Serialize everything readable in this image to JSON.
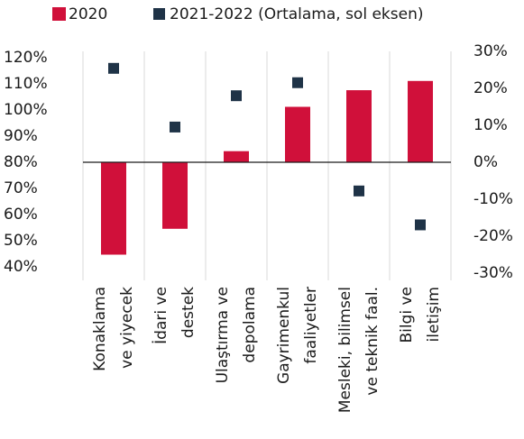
{
  "chart_data": {
    "type": "bar",
    "categories": [
      [
        "Konaklama",
        "ve yiyecek"
      ],
      [
        "İdari ve",
        "destek"
      ],
      [
        "Ulaştırma ve",
        "depolama"
      ],
      [
        "Gayrimenkul",
        "faaliyetler"
      ],
      [
        "Mesleki, bilimsel",
        "ve teknik faal."
      ],
      [
        "Bilgi ve",
        "iletişim"
      ]
    ],
    "series": [
      {
        "name": "2020",
        "color": "#d0103a",
        "type": "bar",
        "axis": "y2",
        "values": [
          -25,
          -18,
          3,
          15,
          19.5,
          22
        ]
      },
      {
        "name": "2021-2022 (Ortalama, sol eksen)",
        "color": "#1f3347",
        "type": "scatter",
        "values": [
          116,
          93.5,
          105.5,
          110.5,
          69,
          56
        ]
      }
    ],
    "ylim": [
      37.5,
      122.5
    ],
    "yticks": [
      {
        "value": 40,
        "label": "40%"
      },
      {
        "value": 50,
        "label": "50%"
      },
      {
        "value": 60,
        "label": "60%"
      },
      {
        "value": 70,
        "label": "70%"
      },
      {
        "value": 80,
        "label": "80%"
      },
      {
        "value": 90,
        "label": "90%"
      },
      {
        "value": 100,
        "label": "100%"
      },
      {
        "value": 110,
        "label": "110%"
      },
      {
        "value": 120,
        "label": "120%"
      }
    ],
    "y2lim": [
      -30,
      30
    ],
    "y2ticks": [
      {
        "value": -30,
        "label": "-30%"
      },
      {
        "value": -20,
        "label": "-20%"
      },
      {
        "value": -10,
        "label": "-10%"
      },
      {
        "value": 0,
        "label": "0%"
      },
      {
        "value": 10,
        "label": "10%"
      },
      {
        "value": 20,
        "label": "20%"
      },
      {
        "value": 30,
        "label": "30%"
      }
    ],
    "legend": "top"
  }
}
